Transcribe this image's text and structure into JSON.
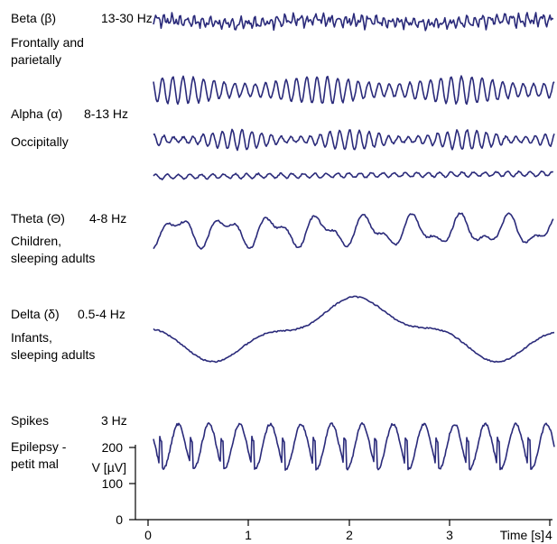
{
  "bands": [
    {
      "name": "Beta (β)",
      "freq": "13-30 Hz",
      "location": "Frontally and\nparietally"
    },
    {
      "name": "Alpha (α)",
      "freq": "8-13 Hz",
      "location": "Occipitally"
    },
    {
      "name": "Theta (Θ)",
      "freq": "4-8 Hz",
      "location": "Children,\nsleeping adults"
    },
    {
      "name": "Delta (δ)",
      "freq": "0.5-4 Hz",
      "location": "Infants,\nsleeping adults"
    },
    {
      "name": "Spikes",
      "freq": "3 Hz",
      "location": "Epilepsy -\npetit mal"
    }
  ],
  "axes": {
    "x_ticks": [
      "0",
      "1",
      "2",
      "3"
    ],
    "x_label": "Time [s]",
    "x_last_tick": "4",
    "y_ticks": [
      "0",
      "100",
      "200"
    ],
    "y_label": "V [µV]"
  },
  "colors": {
    "trace": "#2a2a7a"
  }
}
